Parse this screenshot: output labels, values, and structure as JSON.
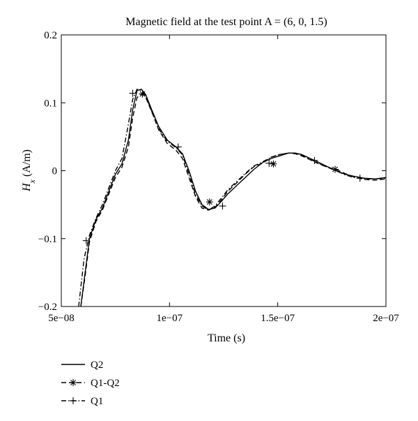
{
  "chart_data": {
    "type": "line",
    "title": "Magnetic field at the test point A = (6, 0, 1.5)",
    "xlabel": "Time (s)",
    "ylabel_main": "H",
    "ylabel_sub": "x",
    "ylabel_unit": "(A/m)",
    "xlim": [
      5e-08,
      2e-07
    ],
    "ylim": [
      -0.2,
      0.2
    ],
    "x_ticks": [
      {
        "value": 5e-08,
        "label": "5e−08"
      },
      {
        "value": 1e-07,
        "label": "1e−07"
      },
      {
        "value": 1.5e-07,
        "label": "1.5e−07"
      },
      {
        "value": 2e-07,
        "label": "2e−07"
      }
    ],
    "y_ticks": [
      {
        "value": -0.2,
        "label": "−0.2"
      },
      {
        "value": -0.1,
        "label": "−0.1"
      },
      {
        "value": 0,
        "label": "0"
      },
      {
        "value": 0.1,
        "label": "0.1"
      },
      {
        "value": 0.2,
        "label": "0.2"
      }
    ],
    "grid": false,
    "legend_position": "below-left",
    "series": [
      {
        "name": "Q2",
        "style": "solid",
        "marker": "none",
        "x": [
          5.9e-08,
          6.1e-08,
          6.3e-08,
          6.6e-08,
          6.9e-08,
          7.2e-08,
          7.5e-08,
          7.8e-08,
          8.1e-08,
          8.3e-08,
          8.5e-08,
          8.7e-08,
          8.9e-08,
          9.2e-08,
          9.5e-08,
          9.9e-08,
          1.03e-07,
          1.06e-07,
          1.09e-07,
          1.12e-07,
          1.15e-07,
          1.18e-07,
          1.21e-07,
          1.24e-07,
          1.27e-07,
          1.31e-07,
          1.35e-07,
          1.39e-07,
          1.43e-07,
          1.47e-07,
          1.51e-07,
          1.55e-07,
          1.58e-07,
          1.61e-07,
          1.65e-07,
          1.69e-07,
          1.73e-07,
          1.77e-07,
          1.81e-07,
          1.85e-07,
          1.9e-07,
          1.95e-07,
          2e-07
        ],
        "y": [
          -0.2,
          -0.15,
          -0.1,
          -0.072,
          -0.055,
          -0.03,
          -0.005,
          0.01,
          0.045,
          0.09,
          0.118,
          0.12,
          0.112,
          0.088,
          0.065,
          0.045,
          0.035,
          0.025,
          0.0,
          -0.03,
          -0.05,
          -0.057,
          -0.055,
          -0.045,
          -0.034,
          -0.022,
          -0.01,
          0.002,
          0.012,
          0.018,
          0.022,
          0.026,
          0.026,
          0.024,
          0.018,
          0.012,
          0.006,
          0.0,
          -0.005,
          -0.008,
          -0.011,
          -0.012,
          -0.01
        ]
      },
      {
        "name": "Q1-Q2",
        "style": "dashed",
        "marker": "asterisk",
        "x": [
          5.9e-08,
          6.1e-08,
          6.3e-08,
          6.6e-08,
          6.9e-08,
          7.2e-08,
          7.5e-08,
          7.8e-08,
          8.1e-08,
          8.3e-08,
          8.5e-08,
          8.75e-08,
          8.9e-08,
          9.2e-08,
          9.5e-08,
          9.9e-08,
          1.03e-07,
          1.06e-07,
          1.09e-07,
          1.12e-07,
          1.15e-07,
          1.18e-07,
          1.21e-07,
          1.24e-07,
          1.27e-07,
          1.31e-07,
          1.35e-07,
          1.39e-07,
          1.43e-07,
          1.47e-07,
          1.51e-07,
          1.55e-07,
          1.58e-07,
          1.61e-07,
          1.65e-07,
          1.69e-07,
          1.73e-07,
          1.77e-07,
          1.81e-07,
          1.85e-07,
          1.9e-07,
          1.95e-07,
          2e-07
        ],
        "y": [
          -0.2,
          -0.155,
          -0.105,
          -0.075,
          -0.058,
          -0.034,
          -0.01,
          0.005,
          0.035,
          0.078,
          0.108,
          0.113,
          0.108,
          0.085,
          0.06,
          0.04,
          0.03,
          0.018,
          -0.01,
          -0.038,
          -0.055,
          -0.058,
          -0.054,
          -0.043,
          -0.03,
          -0.018,
          -0.005,
          0.006,
          0.011,
          0.02,
          0.024,
          0.026,
          0.025,
          0.022,
          0.016,
          0.01,
          0.005,
          0.002,
          -0.004,
          -0.009,
          -0.013,
          -0.014,
          -0.012
        ],
        "markers_x": [
          8.75e-08,
          1.185e-07,
          1.48e-07,
          1.765e-07
        ],
        "markers_y": [
          0.113,
          -0.046,
          0.01,
          0.002
        ]
      },
      {
        "name": "Q1",
        "style": "dashdot",
        "marker": "plus",
        "x": [
          5.8e-08,
          6.05e-08,
          6.3e-08,
          6.6e-08,
          6.9e-08,
          7.2e-08,
          7.5e-08,
          7.8e-08,
          8.05e-08,
          8.3e-08,
          8.5e-08,
          8.7e-08,
          8.9e-08,
          9.2e-08,
          9.5e-08,
          9.9e-08,
          1.03e-07,
          1.06e-07,
          1.09e-07,
          1.12e-07,
          1.15e-07,
          1.18e-07,
          1.21e-07,
          1.24e-07,
          1.27e-07,
          1.31e-07,
          1.35e-07,
          1.39e-07,
          1.43e-07,
          1.47e-07,
          1.51e-07,
          1.55e-07,
          1.58e-07,
          1.61e-07,
          1.65e-07,
          1.69e-07,
          1.73e-07,
          1.77e-07,
          1.81e-07,
          1.85e-07,
          1.9e-07,
          1.95e-07,
          2e-07
        ],
        "y": [
          -0.2,
          -0.13,
          -0.095,
          -0.07,
          -0.05,
          -0.025,
          0.0,
          0.018,
          0.06,
          0.105,
          0.12,
          0.118,
          0.11,
          0.086,
          0.062,
          0.043,
          0.034,
          0.023,
          -0.005,
          -0.035,
          -0.052,
          -0.058,
          -0.052,
          -0.04,
          -0.028,
          -0.016,
          -0.004,
          0.007,
          0.013,
          0.02,
          0.024,
          0.026,
          0.026,
          0.023,
          0.017,
          0.011,
          0.005,
          0.0,
          -0.006,
          -0.01,
          -0.012,
          -0.012,
          -0.011
        ],
        "markers_x": [
          6.15e-08,
          8.3e-08,
          1.04e-07,
          1.245e-07,
          1.46e-07,
          1.67e-07,
          1.88e-07
        ],
        "markers_y": [
          -0.103,
          0.114,
          0.035,
          -0.052,
          0.011,
          0.015,
          -0.011
        ]
      }
    ]
  }
}
